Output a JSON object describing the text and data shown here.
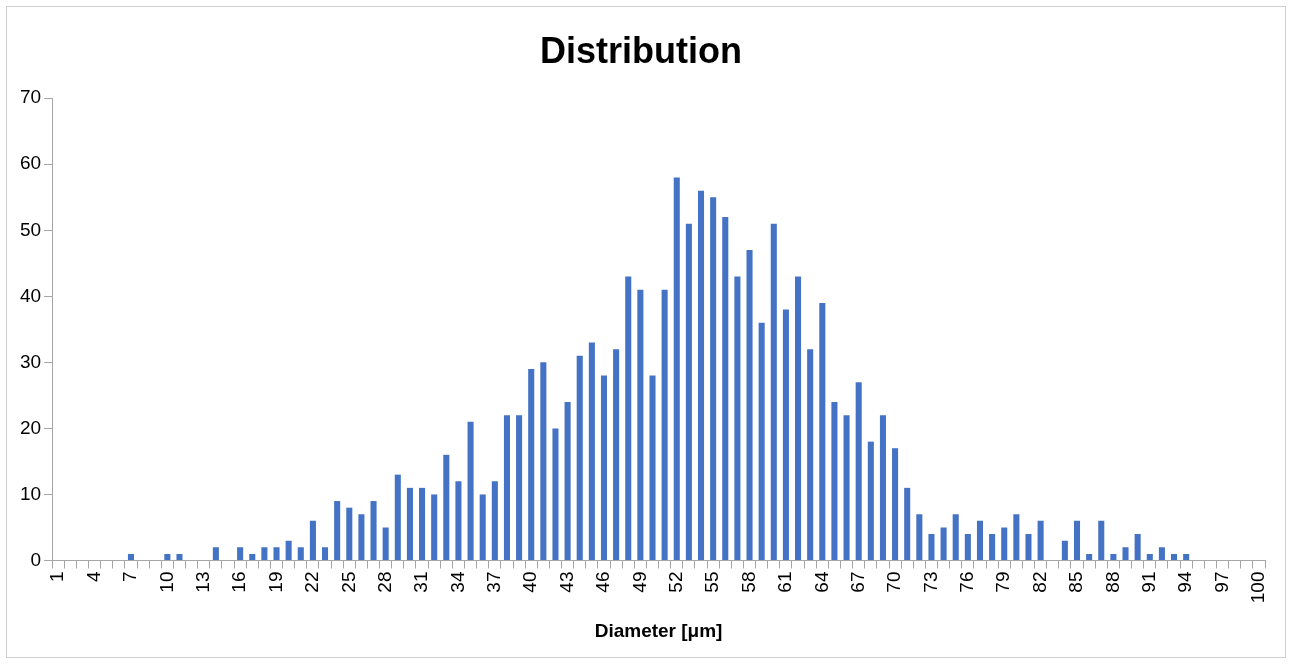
{
  "chart_data": {
    "type": "bar",
    "title": "Distribution",
    "xlabel": "Diameter [μm]",
    "categories": [
      "1",
      null,
      null,
      "4",
      null,
      null,
      "7",
      null,
      null,
      "10",
      null,
      null,
      "13",
      null,
      null,
      "16",
      null,
      null,
      "19",
      null,
      null,
      "22",
      null,
      null,
      "25",
      null,
      null,
      "28",
      null,
      null,
      "31",
      null,
      null,
      "34",
      null,
      null,
      "37",
      null,
      null,
      "40",
      null,
      null,
      "43",
      null,
      null,
      "46",
      null,
      null,
      "49",
      null,
      null,
      "52",
      null,
      null,
      "55",
      null,
      null,
      "58",
      null,
      null,
      "61",
      null,
      null,
      "64",
      null,
      null,
      "67",
      null,
      null,
      "70",
      null,
      null,
      "73",
      null,
      null,
      "76",
      null,
      null,
      "79",
      null,
      null,
      "82",
      null,
      null,
      "85",
      null,
      null,
      "88",
      null,
      null,
      "91",
      null,
      null,
      "94",
      null,
      null,
      "97",
      null,
      null,
      "100"
    ],
    "values": [
      0,
      0,
      0,
      0,
      0,
      0,
      1,
      0,
      0,
      1,
      1,
      0,
      0,
      2,
      0,
      2,
      1,
      2,
      2,
      3,
      2,
      6,
      2,
      9,
      8,
      7,
      9,
      5,
      13,
      11,
      11,
      10,
      16,
      12,
      21,
      10,
      12,
      22,
      22,
      29,
      30,
      20,
      24,
      31,
      33,
      28,
      32,
      43,
      41,
      28,
      41,
      58,
      51,
      56,
      55,
      52,
      43,
      47,
      36,
      51,
      38,
      43,
      32,
      39,
      24,
      22,
      27,
      18,
      22,
      17,
      11,
      7,
      4,
      5,
      7,
      4,
      6,
      4,
      5,
      7,
      4,
      6,
      0,
      3,
      6,
      1,
      6,
      1,
      2,
      4,
      1,
      2,
      1,
      1,
      0,
      0,
      0,
      0,
      0,
      0
    ],
    "color": "#4472c4",
    "ylim": [
      0,
      70
    ],
    "yticks": [
      0,
      10,
      20,
      30,
      40,
      50,
      60,
      70
    ],
    "grid": false,
    "legend": false
  }
}
